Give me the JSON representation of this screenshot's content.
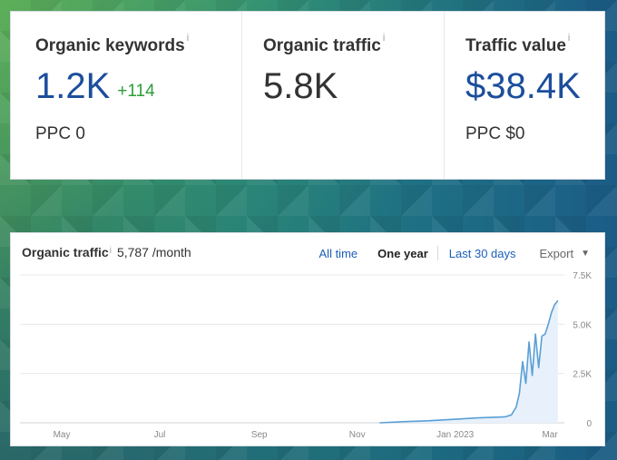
{
  "metrics": {
    "keywords": {
      "title": "Organic keywords",
      "info": "i",
      "value": "1.2K",
      "delta": "+114",
      "sub": "PPC 0"
    },
    "traffic": {
      "title": "Organic traffic",
      "info": "i",
      "value": "5.8K"
    },
    "value": {
      "title": "Traffic value",
      "info": "i",
      "value": "$38.4K",
      "sub": "PPC $0"
    }
  },
  "chart_panel": {
    "title": "Organic traffic",
    "info": "i",
    "subtitle": "5,787 /month",
    "tabs": [
      {
        "label": "All time",
        "active": false
      },
      {
        "label": "One year",
        "active": true
      },
      {
        "label": "Last 30 days",
        "active": false
      }
    ],
    "export_label": "Export",
    "export_caret": "▼"
  },
  "colors": {
    "accent_blue": "#1c4e9c",
    "delta_green": "#2e9d3a",
    "line": "#5a9fd6",
    "area": "#e8f1fb"
  },
  "chart_data": {
    "type": "area",
    "title": "Organic traffic",
    "xlabel": "",
    "ylabel": "",
    "ylim": [
      0,
      7500
    ],
    "y_ticks": [
      "0",
      "2.5K",
      "5.0K",
      "7.5K"
    ],
    "x_ticks": [
      "May",
      "Jul",
      "Sep",
      "Nov",
      "Jan 2023",
      "Mar"
    ],
    "grid": true,
    "series": [
      {
        "x": [
          "2022-11-15",
          "2022-12-01",
          "2022-12-15",
          "2023-01-01",
          "2023-01-15",
          "2023-01-25",
          "2023-02-01",
          "2023-02-05",
          "2023-02-08",
          "2023-02-10",
          "2023-02-12",
          "2023-02-14",
          "2023-02-16",
          "2023-02-18",
          "2023-02-20",
          "2023-02-22",
          "2023-02-24",
          "2023-02-26",
          "2023-02-28",
          "2023-03-02",
          "2023-03-04",
          "2023-03-06"
        ],
        "values": [
          0,
          60,
          100,
          180,
          250,
          280,
          300,
          400,
          800,
          1500,
          3100,
          2000,
          4100,
          2400,
          4500,
          2800,
          4400,
          4500,
          5000,
          5600,
          6000,
          6200
        ]
      }
    ]
  }
}
